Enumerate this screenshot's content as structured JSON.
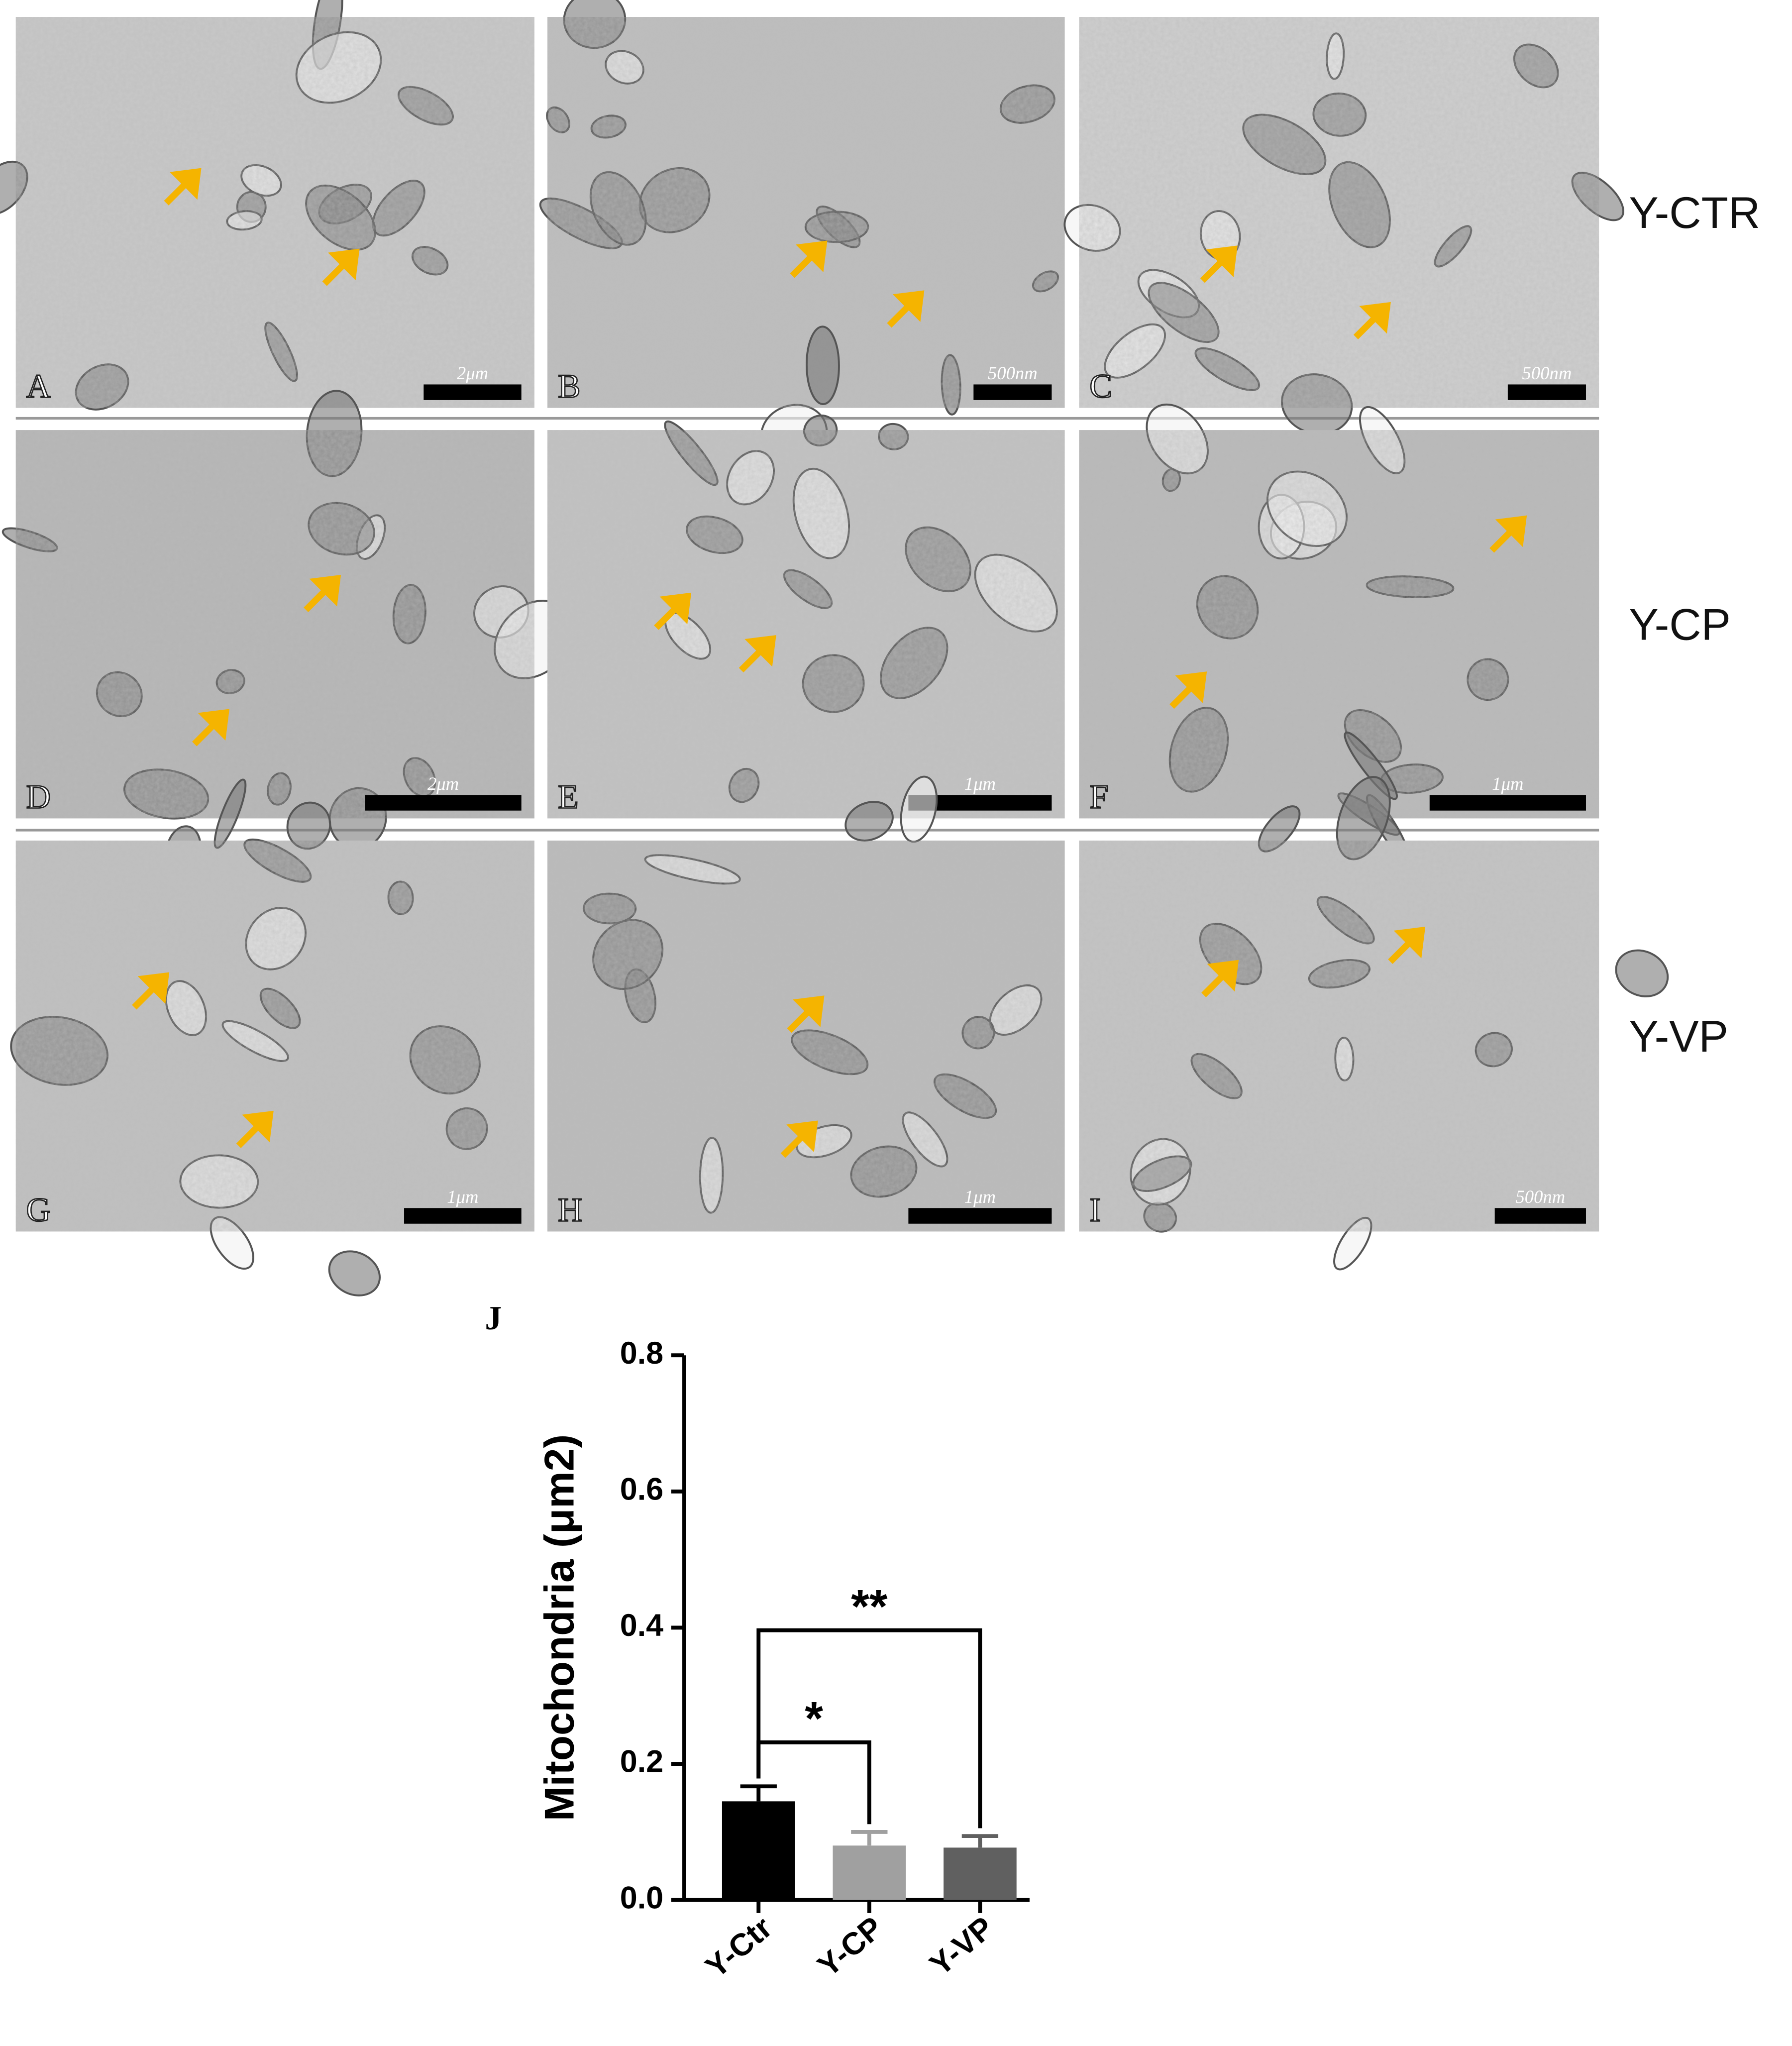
{
  "panels": [
    {
      "label": "A",
      "scale": "2μm"
    },
    {
      "label": "B",
      "scale": "500nm"
    },
    {
      "label": "C",
      "scale": "500nm"
    },
    {
      "label": "D",
      "scale": "2μm"
    },
    {
      "label": "E",
      "scale": "1μm"
    },
    {
      "label": "F",
      "scale": "1μm"
    },
    {
      "label": "G",
      "scale": "1μm"
    },
    {
      "label": "H",
      "scale": "1μm"
    },
    {
      "label": "I",
      "scale": "500nm"
    }
  ],
  "row_labels": [
    "Y-CTR",
    "Y-CP",
    "Y-VP"
  ],
  "chart_data": {
    "type": "bar",
    "panel_label": "J",
    "y_label": "Mitochondria (μm2)",
    "categories": [
      "Y-Ctr",
      "Y-CP",
      "Y-VP"
    ],
    "values": [
      0.145,
      0.08,
      0.077
    ],
    "errors": [
      0.022,
      0.02,
      0.017
    ],
    "colors": [
      "#000000",
      "#a0a0a0",
      "#606060"
    ],
    "ylim": [
      0,
      0.8
    ],
    "yticks": [
      {
        "value": 0,
        "label": "0.0"
      },
      0.2,
      0.4,
      0.6,
      0.8
    ],
    "significance": [
      {
        "label": "*",
        "groups": [
          0,
          1
        ]
      },
      {
        "label": "**",
        "groups": [
          0,
          2
        ]
      }
    ]
  }
}
